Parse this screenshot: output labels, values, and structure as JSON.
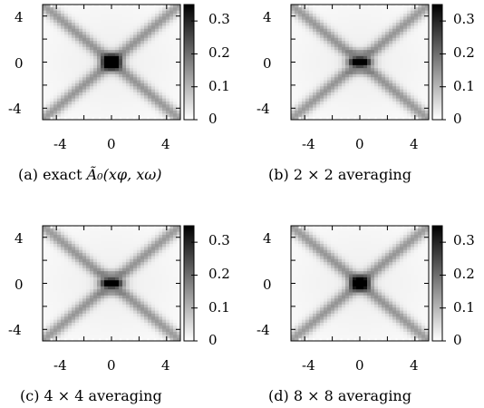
{
  "chart_data": [
    {
      "type": "heatmap",
      "caption_prefix": "(a) exact ",
      "caption_math": "Ã₀(xφ, xω)",
      "x_ticks": [
        "-4",
        "0",
        "4"
      ],
      "y_ticks": [
        "4",
        "0",
        "-4"
      ],
      "xlim": [
        -5,
        5
      ],
      "ylim": [
        -5,
        5
      ],
      "colorbar_ticks": [
        "0.3",
        "0.2",
        "0.1",
        "0"
      ],
      "colorbar_range": [
        0,
        0.35
      ],
      "colormap": [
        "#ffffff",
        "#000000"
      ],
      "center_peak": 0.33,
      "center_pattern": "blob"
    },
    {
      "type": "heatmap",
      "caption_prefix": "(b) 2 × 2 averaging",
      "caption_math": "",
      "x_ticks": [
        "-4",
        "0",
        "4"
      ],
      "y_ticks": [
        "4",
        "0",
        "-4"
      ],
      "xlim": [
        -5,
        5
      ],
      "ylim": [
        -5,
        5
      ],
      "colorbar_ticks": [
        "0.3",
        "0.2",
        "0.1",
        "0"
      ],
      "colorbar_range": [
        0,
        0.35
      ],
      "colormap": [
        "#ffffff",
        "#000000"
      ],
      "center_peak": 0.28,
      "center_pattern": "stripes"
    },
    {
      "type": "heatmap",
      "caption_prefix": "(c) 4 × 4 averaging",
      "caption_math": "",
      "x_ticks": [
        "-4",
        "0",
        "4"
      ],
      "y_ticks": [
        "4",
        "0",
        "-4"
      ],
      "xlim": [
        -5,
        5
      ],
      "ylim": [
        -5,
        5
      ],
      "colorbar_ticks": [
        "0.3",
        "0.2",
        "0.1",
        "0"
      ],
      "colorbar_range": [
        0,
        0.35
      ],
      "colormap": [
        "#ffffff",
        "#000000"
      ],
      "center_peak": 0.25,
      "center_pattern": "stripes"
    },
    {
      "type": "heatmap",
      "caption_prefix": "(d) 8 × 8 averaging",
      "caption_math": "",
      "x_ticks": [
        "-4",
        "0",
        "4"
      ],
      "y_ticks": [
        "4",
        "0",
        "-4"
      ],
      "xlim": [
        -5,
        5
      ],
      "ylim": [
        -5,
        5
      ],
      "colorbar_ticks": [
        "0.3",
        "0.2",
        "0.1",
        "0"
      ],
      "colorbar_range": [
        0,
        0.35
      ],
      "colormap": [
        "#ffffff",
        "#000000"
      ],
      "center_peak": 0.27,
      "center_pattern": "blob"
    }
  ]
}
